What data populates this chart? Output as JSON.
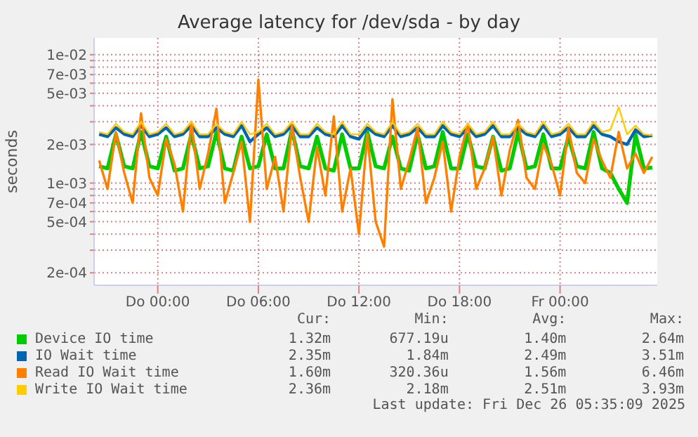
{
  "chart_data": {
    "type": "line",
    "title": "Average latency for /dev/sda - by day",
    "ylabel": "seconds",
    "log": "y",
    "grid": true,
    "legend": "bottom",
    "marker": "none",
    "line_style": "solid",
    "categories": [
      null,
      null,
      null,
      null,
      null,
      null,
      null,
      "Do 00:00",
      null,
      null,
      null,
      null,
      null,
      null,
      null,
      null,
      null,
      null,
      null,
      "Do 06:00",
      null,
      null,
      null,
      null,
      null,
      null,
      null,
      null,
      null,
      null,
      null,
      "Do 12:00",
      null,
      null,
      null,
      null,
      null,
      null,
      null,
      null,
      null,
      null,
      null,
      "Do 18:00",
      null,
      null,
      null,
      null,
      null,
      null,
      null,
      null,
      null,
      null,
      null,
      "Fr 00:00",
      null,
      null,
      null,
      null,
      null,
      null,
      null,
      null,
      null,
      null,
      null
    ],
    "ylim": [
      0.00016,
      0.0135
    ],
    "yticks": [
      {
        "value": 0.0002,
        "label": "2e-04"
      },
      {
        "value": 0.0003,
        "label": null
      },
      {
        "value": 0.0004,
        "label": null
      },
      {
        "value": 0.0005,
        "label": "5e-04"
      },
      {
        "value": 0.0006,
        "label": null
      },
      {
        "value": 0.0007,
        "label": "7e-04"
      },
      {
        "value": 0.0008,
        "label": null
      },
      {
        "value": 0.0009,
        "label": null
      },
      {
        "value": 0.001,
        "label": "1e-03"
      },
      {
        "value": 0.002,
        "label": "2e-03"
      },
      {
        "value": 0.003,
        "label": null
      },
      {
        "value": 0.004,
        "label": null
      },
      {
        "value": 0.005,
        "label": "5e-03"
      },
      {
        "value": 0.006,
        "label": null
      },
      {
        "value": 0.007,
        "label": "7e-03"
      },
      {
        "value": 0.008,
        "label": null
      },
      {
        "value": 0.009,
        "label": null
      },
      {
        "value": 0.01,
        "label": "1e-02"
      }
    ],
    "series": [
      {
        "name": "Device IO time",
        "color": "#00cc00",
        "values": [
          0.00135,
          0.0013,
          0.0024,
          0.00135,
          0.0013,
          0.0025,
          0.00135,
          0.0013,
          0.0023,
          0.00125,
          0.0013,
          0.0024,
          0.0013,
          0.00135,
          0.0025,
          0.0013,
          0.00125,
          0.0023,
          0.0013,
          0.00135,
          0.0024,
          0.0013,
          0.0013,
          0.0026,
          0.00135,
          0.0013,
          0.0023,
          0.0013,
          0.00125,
          0.0024,
          0.0013,
          0.0013,
          0.0025,
          0.00135,
          0.0013,
          0.0023,
          0.0013,
          0.00125,
          0.0024,
          0.0013,
          0.00135,
          0.0025,
          0.0013,
          0.0013,
          0.0024,
          0.00135,
          0.0013,
          0.0023,
          0.00125,
          0.0013,
          0.0025,
          0.0013,
          0.00135,
          0.0024,
          0.0013,
          0.0013,
          0.0023,
          0.00135,
          0.0013,
          0.0025,
          0.0013,
          0.0012,
          0.0009,
          0.0007,
          0.0024,
          0.0013,
          0.00132
        ]
      },
      {
        "name": "IO Wait time",
        "color": "#0066b3",
        "values": [
          0.0024,
          0.0023,
          0.0027,
          0.0024,
          0.0023,
          0.0028,
          0.0023,
          0.0024,
          0.0027,
          0.0023,
          0.0024,
          0.0028,
          0.0023,
          0.0023,
          0.0027,
          0.0024,
          0.0023,
          0.0028,
          0.0021,
          0.0024,
          0.0027,
          0.0023,
          0.0024,
          0.0028,
          0.0023,
          0.0023,
          0.0027,
          0.0024,
          0.0023,
          0.0028,
          0.0023,
          0.0022,
          0.0027,
          0.0024,
          0.0023,
          0.0028,
          0.0023,
          0.0024,
          0.0027,
          0.0023,
          0.0023,
          0.0028,
          0.0024,
          0.0023,
          0.0027,
          0.0023,
          0.0024,
          0.0028,
          0.0023,
          0.0023,
          0.0027,
          0.0024,
          0.0023,
          0.0028,
          0.0023,
          0.0024,
          0.0027,
          0.0023,
          0.0023,
          0.0028,
          0.0024,
          0.0023,
          0.0021,
          0.002,
          0.0026,
          0.0023,
          0.00235
        ]
      },
      {
        "name": "Read IO Wait time",
        "color": "#ff8000",
        "values": [
          0.0015,
          0.0009,
          0.0025,
          0.0012,
          0.0007,
          0.0035,
          0.0011,
          0.0008,
          0.0022,
          0.0014,
          0.0006,
          0.003,
          0.0009,
          0.0017,
          0.0038,
          0.0007,
          0.0012,
          0.0021,
          0.0005,
          0.0064,
          0.0009,
          0.0016,
          0.0006,
          0.0028,
          0.0011,
          0.0005,
          0.0019,
          0.0008,
          0.0033,
          0.0006,
          0.0013,
          0.0004,
          0.0024,
          0.0005,
          0.00032,
          0.0045,
          0.0009,
          0.0015,
          0.0027,
          0.0007,
          0.0011,
          0.0021,
          0.0006,
          0.0016,
          0.0029,
          0.0009,
          0.0013,
          0.0023,
          0.0008,
          0.0018,
          0.0031,
          0.0011,
          0.0009,
          0.002,
          0.0014,
          0.0008,
          0.0027,
          0.0012,
          0.001,
          0.0022,
          0.0015,
          0.0011,
          0.0025,
          0.0013,
          0.0017,
          0.0012,
          0.0016
        ]
      },
      {
        "name": "Write IO Wait time",
        "color": "#ffcc00",
        "values": [
          0.0025,
          0.0024,
          0.0029,
          0.0025,
          0.0024,
          0.003,
          0.0024,
          0.0025,
          0.0029,
          0.0024,
          0.0025,
          0.003,
          0.0024,
          0.0024,
          0.0029,
          0.0025,
          0.0024,
          0.003,
          0.0024,
          0.0025,
          0.0029,
          0.0024,
          0.0025,
          0.003,
          0.0024,
          0.0024,
          0.0029,
          0.0025,
          0.0024,
          0.003,
          0.0024,
          0.0024,
          0.0029,
          0.0025,
          0.0024,
          0.003,
          0.0024,
          0.0025,
          0.0029,
          0.0024,
          0.0024,
          0.003,
          0.0025,
          0.0024,
          0.0029,
          0.0024,
          0.0025,
          0.003,
          0.0024,
          0.0024,
          0.0029,
          0.0025,
          0.0024,
          0.003,
          0.0024,
          0.0025,
          0.0029,
          0.0024,
          0.0024,
          0.003,
          0.0025,
          0.0026,
          0.0039,
          0.0024,
          0.0028,
          0.0024,
          0.00236
        ]
      }
    ],
    "annotations": [
      "Cur:",
      "Min:",
      "Avg:",
      "Max:",
      "1.32m",
      "677.19u",
      "1.40m",
      "2.64m",
      "2.35m",
      "1.84m",
      "2.49m",
      "3.51m",
      "1.60m",
      "320.36u",
      "1.56m",
      "6.46m",
      "2.36m",
      "2.18m",
      "2.51m",
      "3.93m",
      "Last update: Fri Dec 26 05:35:09 2025"
    ]
  }
}
